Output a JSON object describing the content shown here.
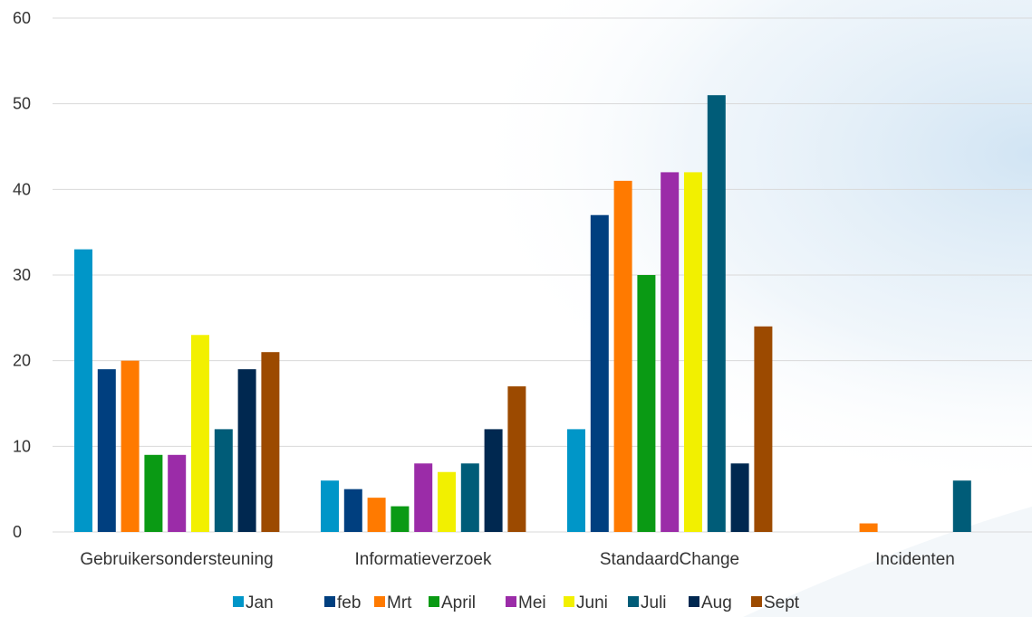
{
  "chart_data": {
    "type": "bar",
    "categories": [
      "Gebruikersondersteuning",
      "Informatieverzoek",
      "StandaardChange",
      "Incidenten"
    ],
    "series": [
      {
        "name": "Jan",
        "color": "#0096c8",
        "values": [
          33,
          6,
          12,
          0
        ]
      },
      {
        "name": "feb",
        "color": "#003f7f",
        "values": [
          19,
          5,
          37,
          0
        ]
      },
      {
        "name": "Mrt",
        "color": "#ff7a00",
        "values": [
          20,
          4,
          41,
          1
        ]
      },
      {
        "name": "April",
        "color": "#0a9a14",
        "values": [
          9,
          3,
          30,
          0
        ]
      },
      {
        "name": "Mei",
        "color": "#9b2ca8",
        "values": [
          9,
          8,
          42,
          0
        ]
      },
      {
        "name": "Juni",
        "color": "#f2f000",
        "values": [
          23,
          7,
          42,
          0
        ]
      },
      {
        "name": "Juli",
        "color": "#005c78",
        "values": [
          12,
          8,
          51,
          6
        ]
      },
      {
        "name": "Aug",
        "color": "#002850",
        "values": [
          19,
          12,
          8,
          0
        ]
      },
      {
        "name": "Sept",
        "color": "#9c4a00",
        "values": [
          21,
          17,
          24,
          0
        ]
      }
    ],
    "yticks": [
      "0",
      "10",
      "20",
      "30",
      "40",
      "50",
      "60"
    ],
    "ylim": [
      0,
      60
    ],
    "grid": true,
    "legend_position": "bottom"
  }
}
